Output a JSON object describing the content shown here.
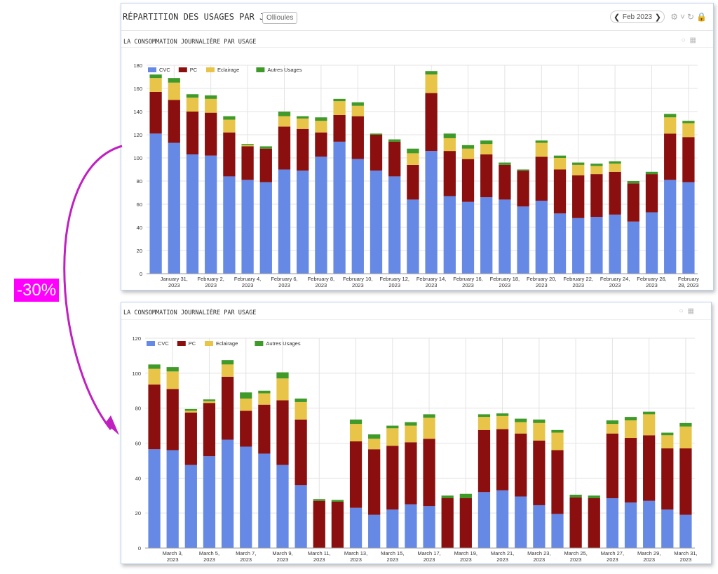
{
  "dashboard": {
    "title": "RÉPARTITION DES USAGES PAR JOUR",
    "site": "Ollioules",
    "period": "Feb 2023",
    "prev_icon": "chevron-left-icon",
    "next_icon": "chevron-right-icon",
    "tool_icons": [
      "gear-icon",
      "refresh-icon",
      "lock-icon"
    ]
  },
  "annotation": {
    "text": "-30%",
    "color": "#ff00ff",
    "arrow_color": "#c020c0"
  },
  "colors": {
    "CVC": "#6689e6",
    "PC": "#8b0f0f",
    "Eclairage": "#e8c548",
    "Autres Usages": "#3f9a2a"
  },
  "chart_data": [
    {
      "type": "bar",
      "stacked": true,
      "title": "LA CONSOMMATION JOURNALIÈRE PAR USAGE",
      "ylim": [
        0,
        180
      ],
      "yticks": [
        0,
        20,
        40,
        60,
        80,
        100,
        120,
        140,
        160,
        180
      ],
      "legend": "top-left",
      "grid": true,
      "categories": [
        "2023-01-30",
        "2023-01-31",
        "2023-02-01",
        "2023-02-02",
        "2023-02-03",
        "2023-02-04",
        "2023-02-05",
        "2023-02-06",
        "2023-02-07",
        "2023-02-08",
        "2023-02-09",
        "2023-02-10",
        "2023-02-11",
        "2023-02-12",
        "2023-02-13",
        "2023-02-14",
        "2023-02-15",
        "2023-02-16",
        "2023-02-17",
        "2023-02-18",
        "2023-02-19",
        "2023-02-20",
        "2023-02-21",
        "2023-02-22",
        "2023-02-23",
        "2023-02-24",
        "2023-02-25",
        "2023-02-26",
        "2023-02-27",
        "2023-02-28"
      ],
      "xtick_labels": [
        {
          "index": 1,
          "lines": [
            "January 31,",
            "2023"
          ]
        },
        {
          "index": 3,
          "lines": [
            "February 2,",
            "2023"
          ]
        },
        {
          "index": 5,
          "lines": [
            "February 4,",
            "2023"
          ]
        },
        {
          "index": 7,
          "lines": [
            "February 6,",
            "2023"
          ]
        },
        {
          "index": 9,
          "lines": [
            "February 8,",
            "2023"
          ]
        },
        {
          "index": 11,
          "lines": [
            "February 10,",
            "2023"
          ]
        },
        {
          "index": 13,
          "lines": [
            "February 12,",
            "2023"
          ]
        },
        {
          "index": 15,
          "lines": [
            "February 14,",
            "2023"
          ]
        },
        {
          "index": 17,
          "lines": [
            "February 16,",
            "2023"
          ]
        },
        {
          "index": 19,
          "lines": [
            "February 18,",
            "2023"
          ]
        },
        {
          "index": 21,
          "lines": [
            "February 20,",
            "2023"
          ]
        },
        {
          "index": 23,
          "lines": [
            "February 22,",
            "2023"
          ]
        },
        {
          "index": 25,
          "lines": [
            "February 24,",
            "2023"
          ]
        },
        {
          "index": 27,
          "lines": [
            "February 26,",
            "2023"
          ]
        },
        {
          "index": 29,
          "lines": [
            "February",
            "28, 2023"
          ]
        }
      ],
      "series": [
        {
          "name": "CVC",
          "values": [
            121,
            113,
            103,
            102,
            84,
            81,
            79,
            90,
            89,
            101,
            114,
            99,
            89,
            84,
            64,
            106,
            67,
            62,
            66,
            64,
            58,
            63,
            52,
            48,
            49,
            51,
            45,
            53,
            81,
            79
          ]
        },
        {
          "name": "PC",
          "values": [
            36,
            37,
            37,
            37,
            38,
            29,
            29,
            37,
            36,
            21,
            23,
            37,
            31,
            30,
            30,
            50,
            39,
            37,
            37,
            30,
            31,
            38,
            38,
            37,
            37,
            37,
            33,
            33,
            40,
            39
          ]
        },
        {
          "name": "Eclairage",
          "values": [
            12,
            15,
            12,
            12,
            11,
            1,
            0,
            9,
            9,
            10,
            12,
            9,
            0,
            0,
            10,
            16,
            11,
            9,
            9,
            0,
            0,
            12,
            10,
            9,
            7,
            7,
            0,
            0,
            14,
            12
          ]
        },
        {
          "name": "Autres Usages",
          "values": [
            3,
            4,
            3,
            3,
            3,
            1,
            2,
            4,
            2,
            3,
            2,
            3,
            1,
            2,
            4,
            3,
            4,
            3,
            3,
            2,
            1,
            2,
            2,
            2,
            2,
            2,
            2,
            2,
            3,
            2
          ]
        }
      ]
    },
    {
      "type": "bar",
      "stacked": true,
      "title": "LA CONSOMMATION JOURNALIÈRE PAR USAGE",
      "ylim": [
        0,
        120
      ],
      "yticks": [
        0,
        20,
        40,
        60,
        80,
        100,
        120
      ],
      "legend": "top-left",
      "grid": true,
      "categories": [
        "2023-03-02",
        "2023-03-03",
        "2023-03-04",
        "2023-03-05",
        "2023-03-06",
        "2023-03-07",
        "2023-03-08",
        "2023-03-09",
        "2023-03-10",
        "2023-03-11",
        "2023-03-12",
        "2023-03-13",
        "2023-03-14",
        "2023-03-15",
        "2023-03-16",
        "2023-03-17",
        "2023-03-18",
        "2023-03-19",
        "2023-03-20",
        "2023-03-21",
        "2023-03-22",
        "2023-03-23",
        "2023-03-24",
        "2023-03-25",
        "2023-03-26",
        "2023-03-27",
        "2023-03-28",
        "2023-03-29",
        "2023-03-30",
        "2023-03-31"
      ],
      "xtick_labels": [
        {
          "index": 1,
          "lines": [
            "March 3,",
            "2023"
          ]
        },
        {
          "index": 3,
          "lines": [
            "March 5,",
            "2023"
          ]
        },
        {
          "index": 5,
          "lines": [
            "March 7,",
            "2023"
          ]
        },
        {
          "index": 7,
          "lines": [
            "March 9,",
            "2023"
          ]
        },
        {
          "index": 9,
          "lines": [
            "March 11,",
            "2023"
          ]
        },
        {
          "index": 11,
          "lines": [
            "March 13,",
            "2023"
          ]
        },
        {
          "index": 13,
          "lines": [
            "March 15,",
            "2023"
          ]
        },
        {
          "index": 15,
          "lines": [
            "March 17,",
            "2023"
          ]
        },
        {
          "index": 17,
          "lines": [
            "March 19,",
            "2023"
          ]
        },
        {
          "index": 19,
          "lines": [
            "March 21,",
            "2023"
          ]
        },
        {
          "index": 21,
          "lines": [
            "March 23,",
            "2023"
          ]
        },
        {
          "index": 23,
          "lines": [
            "March 25,",
            "2023"
          ]
        },
        {
          "index": 25,
          "lines": [
            "March 27,",
            "2023"
          ]
        },
        {
          "index": 27,
          "lines": [
            "March 29,",
            "2023"
          ]
        },
        {
          "index": 29,
          "lines": [
            "March 31,",
            "2023"
          ]
        }
      ],
      "series": [
        {
          "name": "CVC",
          "values": [
            56.5,
            56,
            47.5,
            52.5,
            62,
            58,
            54,
            47.5,
            36,
            0,
            0,
            23,
            19,
            22,
            25,
            24,
            0,
            0,
            32,
            33,
            29.5,
            24.5,
            19.5,
            0,
            0,
            28.5,
            26,
            27,
            22,
            19
          ]
        },
        {
          "name": "PC",
          "values": [
            37,
            35,
            30,
            30.5,
            36,
            20.5,
            28,
            37,
            37.5,
            27,
            26.5,
            38,
            37.5,
            36.5,
            35.5,
            38.5,
            28.5,
            28.5,
            35.5,
            35,
            36,
            37,
            36.5,
            29,
            28.5,
            37,
            37,
            37.5,
            35,
            38
          ]
        },
        {
          "name": "Eclairage",
          "values": [
            9,
            10,
            1,
            1,
            7,
            7,
            6.5,
            12.5,
            10,
            0,
            0,
            10,
            6,
            10,
            9.5,
            12,
            0,
            0,
            7.5,
            7.5,
            6.5,
            10,
            10,
            0,
            0,
            5.5,
            10,
            12,
            7.5,
            12.5
          ]
        },
        {
          "name": "Autres Usages",
          "values": [
            2.5,
            2.5,
            1,
            1,
            2.5,
            3.5,
            1.5,
            3.5,
            2,
            1,
            1,
            2.5,
            2.5,
            1.5,
            2,
            2,
            1.5,
            2.5,
            1.5,
            1.5,
            2,
            2,
            1.5,
            1.5,
            1.5,
            2,
            2,
            1.5,
            1.5,
            2
          ]
        }
      ]
    }
  ]
}
